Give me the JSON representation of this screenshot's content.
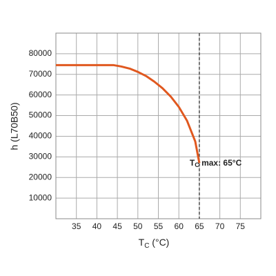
{
  "chart_data": {
    "type": "line",
    "x_label": {
      "main": "T",
      "sub": "C",
      "rest": " (°C)"
    },
    "y_label": "h (L70B50)",
    "x": [
      30,
      44,
      46,
      48,
      50,
      52,
      54,
      56,
      58,
      60,
      62,
      64,
      65
    ],
    "series": [
      {
        "color": "#e0581f",
        "values": [
          74500,
          74500,
          73800,
          72800,
          71200,
          69200,
          66500,
          63300,
          59300,
          54200,
          47500,
          37500,
          27000
        ]
      }
    ],
    "xlim": [
      30,
      80
    ],
    "xticks": [
      35,
      40,
      45,
      50,
      55,
      60,
      65,
      70,
      75
    ],
    "ylim": [
      0,
      90000
    ],
    "yticks": [
      10000,
      20000,
      30000,
      40000,
      50000,
      60000,
      70000,
      80000
    ],
    "grid": true,
    "marker_line": {
      "x": 65,
      "label": {
        "main": "T",
        "sub": "C",
        "rest": " max: 65°C"
      }
    }
  }
}
